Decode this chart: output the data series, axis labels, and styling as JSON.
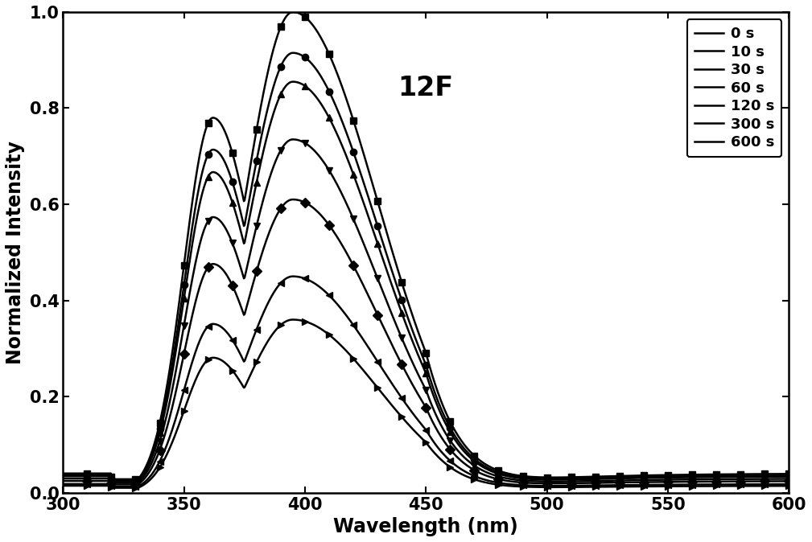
{
  "title_annotation": "12F",
  "xlabel": "Wavelength (nm)",
  "ylabel": "Normalized Intensity",
  "xlim": [
    300,
    600
  ],
  "ylim": [
    0.0,
    1.0
  ],
  "xticks": [
    300,
    350,
    400,
    450,
    500,
    550,
    600
  ],
  "yticks": [
    0.0,
    0.2,
    0.4,
    0.6,
    0.8,
    1.0
  ],
  "series": [
    {
      "label": "0 s",
      "marker": "s",
      "scale": 1.0,
      "color": "#000000"
    },
    {
      "label": "10 s",
      "marker": "o",
      "scale": 0.915,
      "color": "#000000"
    },
    {
      "label": "30 s",
      "marker": "^",
      "scale": 0.855,
      "color": "#000000"
    },
    {
      "label": "60 s",
      "marker": "v",
      "scale": 0.735,
      "color": "#000000"
    },
    {
      "label": "120 s",
      "marker": "D",
      "scale": 0.61,
      "color": "#000000"
    },
    {
      "label": "300 s",
      "marker": "<",
      "scale": 0.45,
      "color": "#000000"
    },
    {
      "label": "600 s",
      "marker": ">",
      "scale": 0.36,
      "color": "#000000"
    }
  ],
  "background_color": "#ffffff",
  "linewidth": 1.8,
  "markersize": 6,
  "annotation_fontsize": 24,
  "label_fontsize": 17,
  "tick_fontsize": 15,
  "legend_fontsize": 13,
  "marker_every": 10
}
